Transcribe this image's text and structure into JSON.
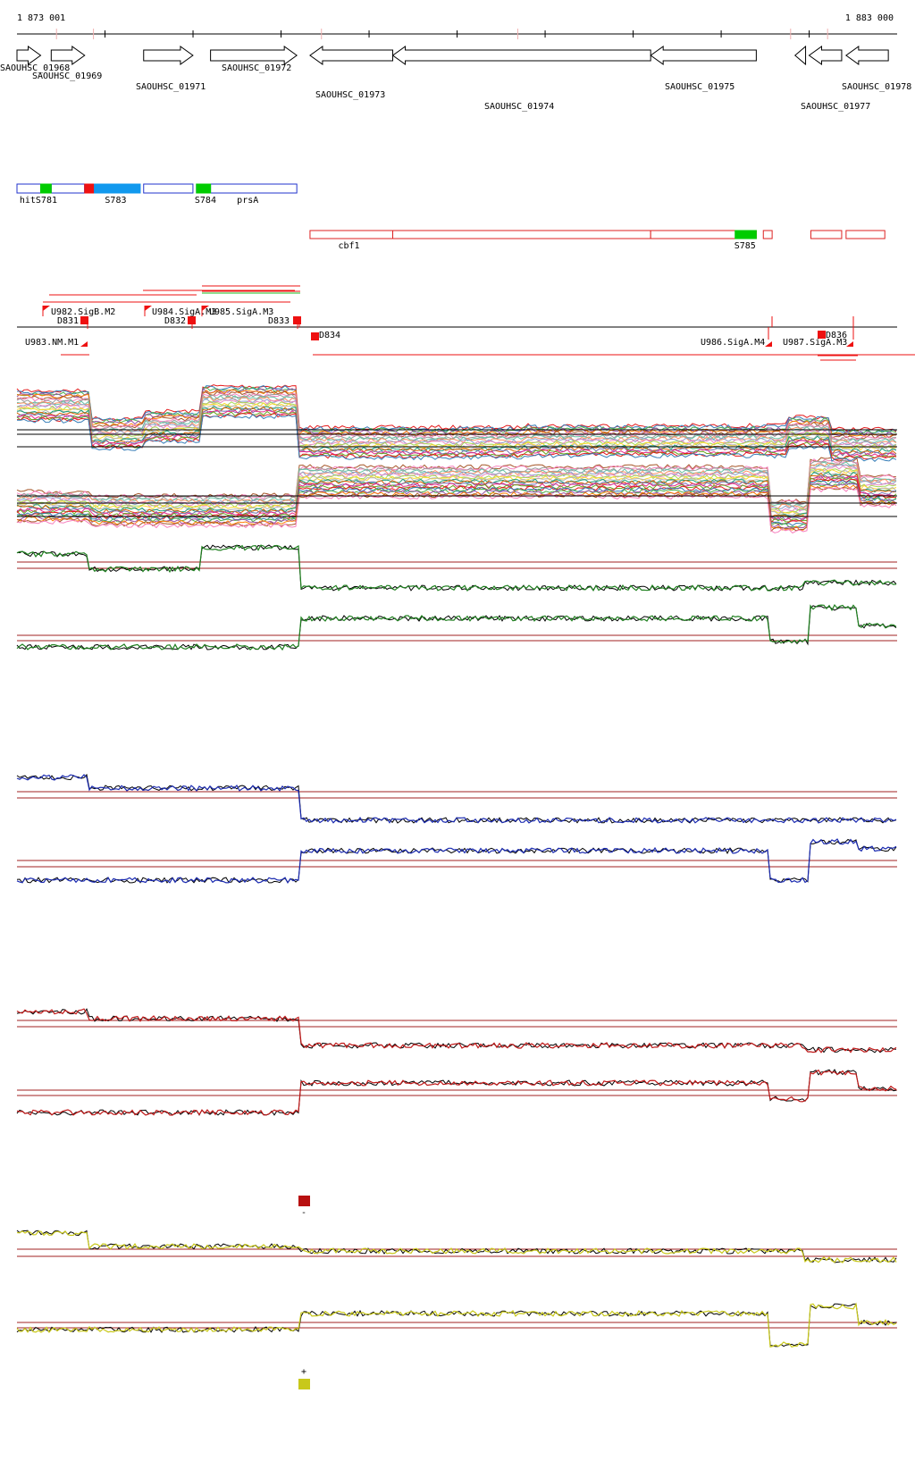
{
  "ruler": {
    "start_label": "1 873 001",
    "end_label": "1 883 000",
    "start": 1873001,
    "end": 1883000
  },
  "genes": [
    {
      "name": "SAOUHSC_01968",
      "start": 1873001,
      "end": 1873270,
      "strand": "+",
      "row": 0
    },
    {
      "name": "SAOUHSC_01969",
      "start": 1873390,
      "end": 1873770,
      "strand": "+",
      "row": 0
    },
    {
      "name": "SAOUHSC_01971",
      "start": 1874440,
      "end": 1875000,
      "strand": "+",
      "row": 0
    },
    {
      "name": "SAOUHSC_01972",
      "start": 1875200,
      "end": 1876180,
      "strand": "+",
      "row": 0
    },
    {
      "name": "SAOUHSC_01973",
      "start": 1876330,
      "end": 1877270,
      "strand": "-",
      "row": 0
    },
    {
      "name": "SAOUHSC_01974",
      "start": 1877270,
      "end": 1880200,
      "strand": "-",
      "row": 0
    },
    {
      "name": "SAOUHSC_01975",
      "start": 1880200,
      "end": 1881400,
      "strand": "-",
      "row": 0
    },
    {
      "name": "SAOUHSC_01977",
      "start": 1881840,
      "end": 1881960,
      "strand": "-",
      "row": 0
    },
    {
      "name": "SAOUHSC_01977",
      "start": 1882000,
      "end": 1882370,
      "strand": "-",
      "row": 0
    },
    {
      "name": "SAOUHSC_01978",
      "start": 1882420,
      "end": 1882900,
      "strand": "-",
      "row": 0
    }
  ],
  "gene_labels": [
    {
      "text": "SAOUHSC_01968",
      "x": 0.0,
      "row": 0
    },
    {
      "text": "SAOUHSC_01969",
      "x": 0.017,
      "row": 1
    },
    {
      "text": "SAOUHSC_01971",
      "x": 0.135,
      "row": 2
    },
    {
      "text": "SAOUHSC_01972",
      "x": 0.222,
      "row": 0
    },
    {
      "text": "SAOUHSC_01973",
      "x": 0.326,
      "row": 3
    },
    {
      "text": "SAOUHSC_01974",
      "x": 0.511,
      "row": 4
    },
    {
      "text": "SAOUHSC_01975",
      "x": 0.706,
      "row": 2
    },
    {
      "text": "SAOUHSC_01977",
      "x": 0.855,
      "row": 4
    },
    {
      "text": "SAOUHSC_01978",
      "x": 0.903,
      "row": 2
    }
  ],
  "annot_plus": {
    "boxes": [
      {
        "start": 1873001,
        "end": 1873270
      },
      {
        "start": 1873270,
        "end": 1873390
      },
      {
        "start": 1873390,
        "end": 1873770
      },
      {
        "start": 1873770,
        "end": 1873880
      },
      {
        "start": 1873880,
        "end": 1874400
      },
      {
        "start": 1874440,
        "end": 1875000
      },
      {
        "start": 1875040,
        "end": 1875200
      },
      {
        "start": 1875200,
        "end": 1876180
      }
    ],
    "marks": [
      {
        "start": 1873270,
        "end": 1873390,
        "color": "#00cc00"
      },
      {
        "start": 1873770,
        "end": 1873880,
        "color": "#ee1111"
      },
      {
        "start": 1873880,
        "end": 1874400,
        "color": "#1199ee"
      },
      {
        "start": 1875040,
        "end": 1875200,
        "color": "#00cc00"
      }
    ],
    "labels": [
      {
        "text": "hitS781",
        "pos": 1873030
      },
      {
        "text": "S783",
        "pos": 1874000
      },
      {
        "text": "S784",
        "pos": 1875020
      },
      {
        "text": "prsA",
        "pos": 1875500
      }
    ]
  },
  "annot_minus": {
    "boxes": [
      {
        "start": 1876330,
        "end": 1877270
      },
      {
        "start": 1877270,
        "end": 1880200
      },
      {
        "start": 1880200,
        "end": 1881400
      },
      {
        "start": 1881480,
        "end": 1881580
      },
      {
        "start": 1882020,
        "end": 1882370
      },
      {
        "start": 1882420,
        "end": 1882860
      }
    ],
    "marks": [
      {
        "start": 1881160,
        "end": 1881400,
        "color": "#00cc00"
      }
    ],
    "labels": [
      {
        "text": "cbf1",
        "pos": 1876650
      },
      {
        "text": "S785",
        "pos": 1881150
      }
    ]
  },
  "tss_labels": [
    {
      "text": "U982.SigB.M2",
      "pos": 1873370,
      "row": 0
    },
    {
      "text": "D831",
      "pos": 1873450,
      "row": 1
    },
    {
      "text": "U984.SigA.M3",
      "pos": 1874480,
      "row": 0
    },
    {
      "text": "D832",
      "pos": 1874630,
      "row": 1
    },
    {
      "text": "U985.SigA.M3",
      "pos": 1875080,
      "row": 0
    },
    {
      "text": "D833",
      "pos": 1875730,
      "row": 1
    },
    {
      "text": "U983.NM.M1",
      "pos": 1873100,
      "row": 2
    },
    {
      "text": "D834",
      "pos": 1876420,
      "row": 3
    },
    {
      "text": "U986.SigA.M4",
      "pos": 1880940,
      "row": 2
    },
    {
      "text": "U987.SigA.M3",
      "pos": 1881920,
      "row": 2
    },
    {
      "text": "D836",
      "pos": 1882250,
      "row": 4
    }
  ],
  "legend": [
    {
      "symbol": "-",
      "color": "#b81010"
    },
    {
      "symbol": "+",
      "color": "#c8c81a"
    }
  ],
  "colors": {
    "gene_stroke": "#000000",
    "annot_plus_stroke": "#2233cc",
    "annot_minus_stroke": "#dd2222",
    "tss": "#ee1111",
    "threshold": "#a02020",
    "green": "#208020",
    "blue": "#1a2ab0",
    "red": "#c01818",
    "yellow": "#c8c81a"
  },
  "tracks": [
    {
      "color": "green",
      "name": "track-1"
    },
    {
      "color": "blue",
      "name": "track-2"
    },
    {
      "color": "red",
      "name": "track-3"
    },
    {
      "color": "yellow",
      "name": "track-4"
    }
  ]
}
